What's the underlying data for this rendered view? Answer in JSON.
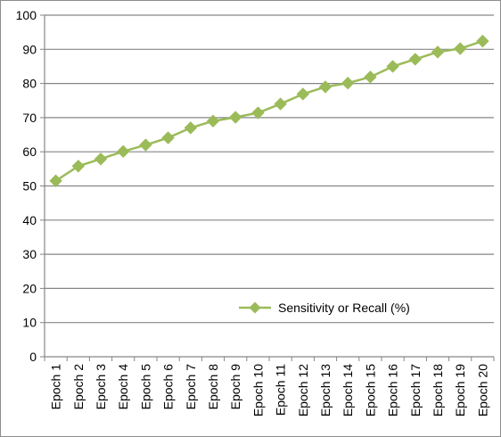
{
  "chart_data": {
    "type": "line",
    "categories": [
      "Epoch 1",
      "Epoch 2",
      "Epoch 3",
      "Epoch 4",
      "Epoch 5",
      "Epoch 6",
      "Epoch 7",
      "Epoch 8",
      "Epoch 9",
      "Epoch 10",
      "Epoch 11",
      "Epoch 12",
      "Epoch 13",
      "Epoch 14",
      "Epoch 15",
      "Epoch 16",
      "Epoch 17",
      "Epoch 18",
      "Epoch 19",
      "Epoch 20"
    ],
    "series": [
      {
        "name": "Sensitivity or Recall (%)",
        "values": [
          51.5,
          55.8,
          57.9,
          60.1,
          62.0,
          64.1,
          67.0,
          69.0,
          70.1,
          71.4,
          74.0,
          76.9,
          79.0,
          80.1,
          81.9,
          85.0,
          87.1,
          89.2,
          90.2,
          92.4
        ],
        "color": "#9bbb59"
      }
    ],
    "title": "",
    "xlabel": "",
    "ylabel": "",
    "ylim": [
      0,
      100
    ],
    "yticks": [
      0,
      10,
      20,
      30,
      40,
      50,
      60,
      70,
      80,
      90,
      100
    ],
    "grid": true,
    "legend_position": "inside-lower-right",
    "marker": "diamond"
  }
}
